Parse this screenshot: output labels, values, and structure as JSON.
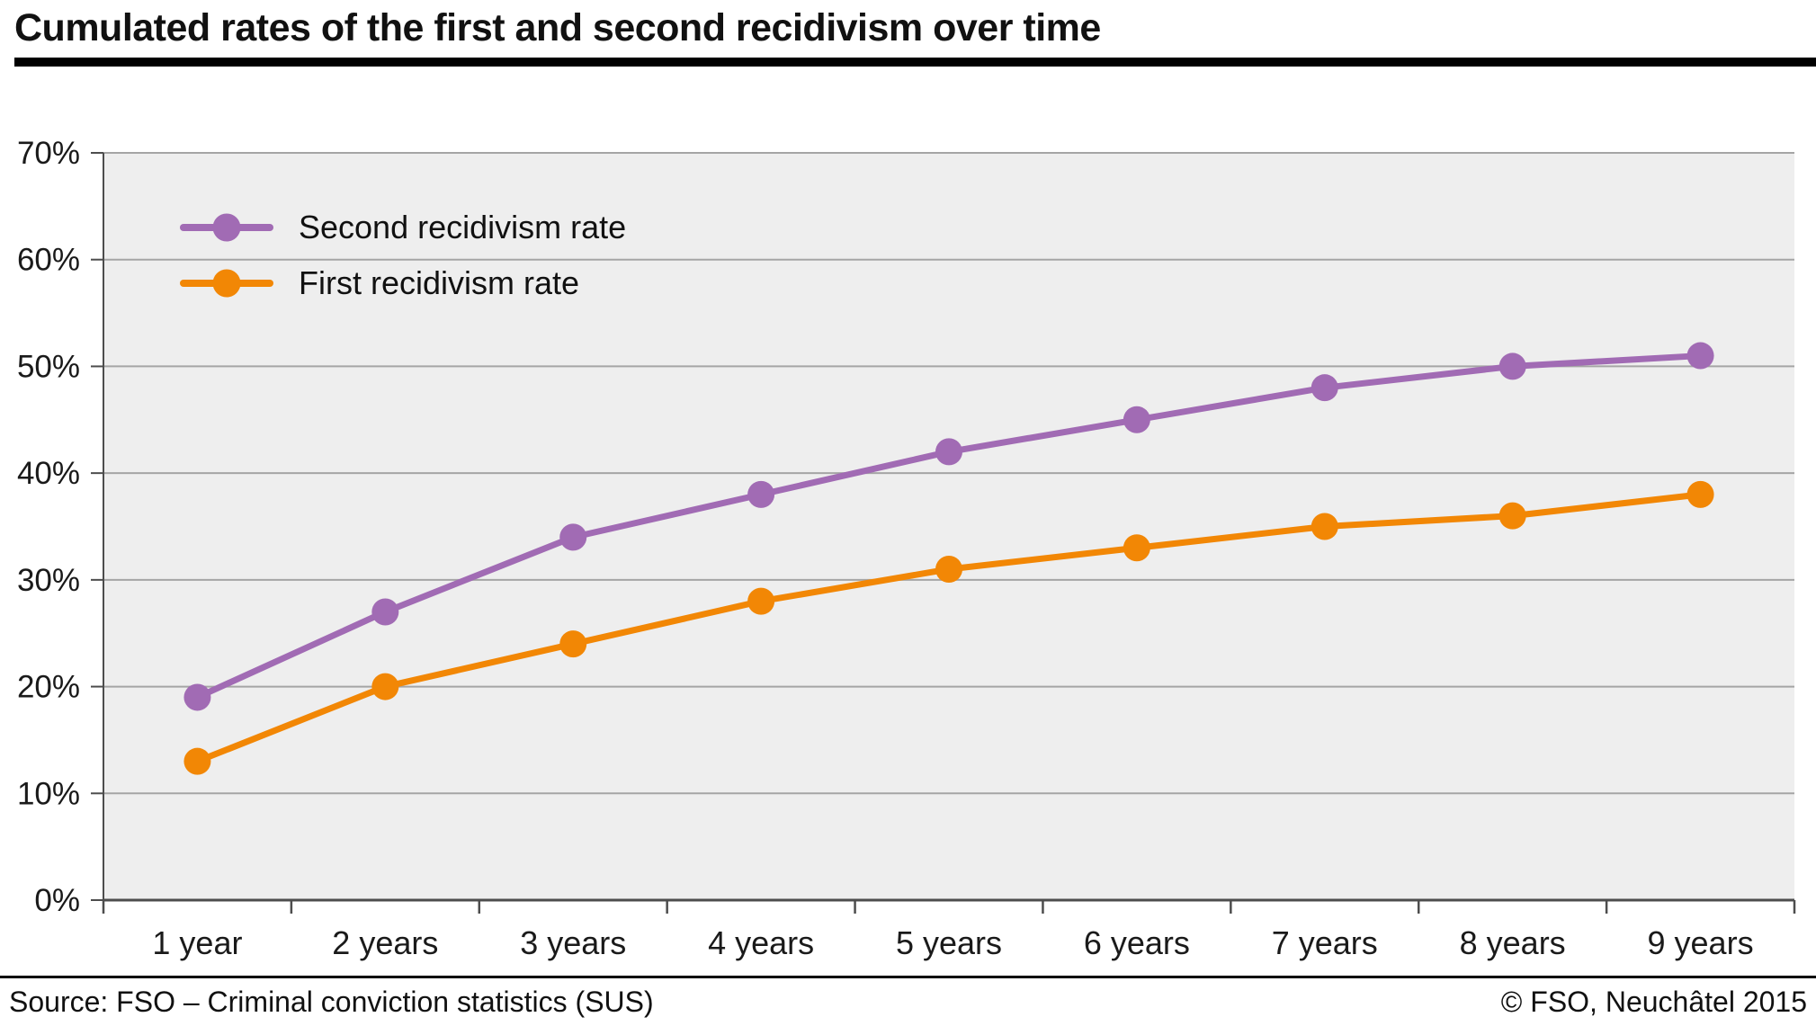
{
  "header": {
    "title": "Cumulated rates of the first and second recidivism over time"
  },
  "chart_data": {
    "type": "line",
    "title": "Cumulated rates of the first and second recidivism over time",
    "categories": [
      "1 year",
      "2 years",
      "3 years",
      "4 years",
      "5 years",
      "6 years",
      "7 years",
      "8 years",
      "9 years"
    ],
    "series": [
      {
        "name": "Second recidivism rate",
        "color": "#a16bb4",
        "values": [
          19,
          27,
          34,
          38,
          42,
          45,
          48,
          50,
          51
        ]
      },
      {
        "name": "First recidivism rate",
        "color": "#f28705",
        "values": [
          13,
          20,
          24,
          28,
          31,
          33,
          35,
          36,
          38
        ]
      }
    ],
    "ylim": [
      0,
      70
    ],
    "ytick_step": 10,
    "ytick_suffix": "%",
    "xlabel": "",
    "ylabel": "",
    "grid": true,
    "legend_position": "top-left-inside",
    "colors": {
      "plot_bg": "#eeeeee",
      "grid": "#a5a5a5",
      "axis": "#4d4d4d",
      "text": "#1a1a1a"
    }
  },
  "footer": {
    "source": "Source: FSO – Criminal conviction statistics (SUS)",
    "copyright": "© FSO, Neuchâtel 2015"
  }
}
